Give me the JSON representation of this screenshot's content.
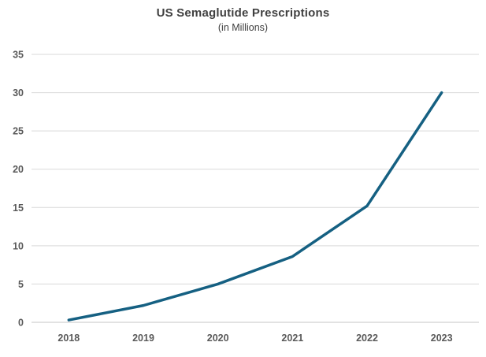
{
  "header": {
    "title": "US Semaglutide Prescriptions",
    "subtitle": "(in Millions)"
  },
  "chart_data": {
    "type": "line",
    "title": "US Semaglutide Prescriptions",
    "subtitle": "(in Millions)",
    "categories": [
      "2018",
      "2019",
      "2020",
      "2021",
      "2022",
      "2023"
    ],
    "series": [
      {
        "name": "US Semaglutide Prescriptions (Millions)",
        "values": [
          0.3,
          2.2,
          5.0,
          8.6,
          15.2,
          30.0
        ]
      }
    ],
    "xlabel": "",
    "ylabel": "",
    "ylim": [
      0,
      35
    ],
    "yticks": [
      0,
      5,
      10,
      15,
      20,
      25,
      30,
      35
    ],
    "grid": "horizontal",
    "legend": "none",
    "colors": {
      "line": "#156082",
      "gridline": "#D9D9D9",
      "axis_line": "#C6C6C6",
      "tick_label": "#595959",
      "title": "#404040",
      "background": "#FFFFFF"
    }
  }
}
